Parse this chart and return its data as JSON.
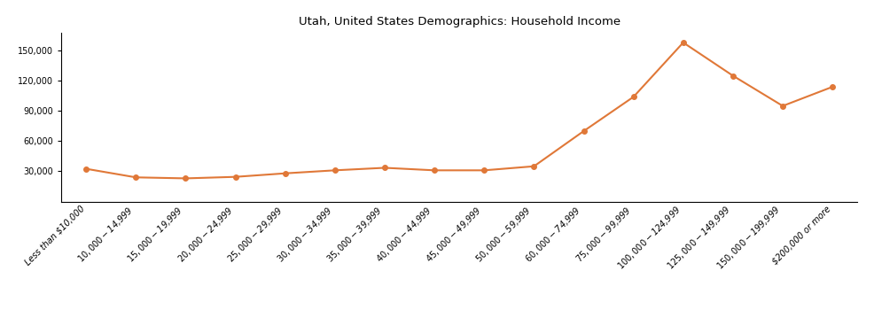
{
  "title": "Utah, United States Demographics: Household Income",
  "categories": [
    "Less than $10,000",
    "$10,000 - $14,999",
    "$15,000 - $19,999",
    "$20,000 - $24,999",
    "$25,000 - $29,999",
    "$30,000 - $34,999",
    "$35,000 - $39,999",
    "$40,000 - $44,999",
    "$45,000 - $49,999",
    "$50,000 - $59,999",
    "$60,000 - $74,999",
    "$75,000 - $99,999",
    "$100,000 - $124,999",
    "$125,000 - $149,999",
    "$150,000 - $199,999",
    "$200,000 or more"
  ],
  "values": [
    32500,
    24000,
    23000,
    24500,
    28000,
    31000,
    33500,
    31000,
    31000,
    35000,
    70000,
    104000,
    158000,
    125000,
    95000,
    114000
  ],
  "line_color": "#e07838",
  "marker_color": "#e07838",
  "marker_size": 4,
  "line_width": 1.5,
  "ylim": [
    0,
    168000
  ],
  "yticks": [
    30000,
    60000,
    90000,
    120000,
    150000
  ],
  "background_color": "#ffffff",
  "title_fontsize": 9.5,
  "tick_fontsize": 7,
  "fig_width": 9.87,
  "fig_height": 3.67,
  "dpi": 100
}
